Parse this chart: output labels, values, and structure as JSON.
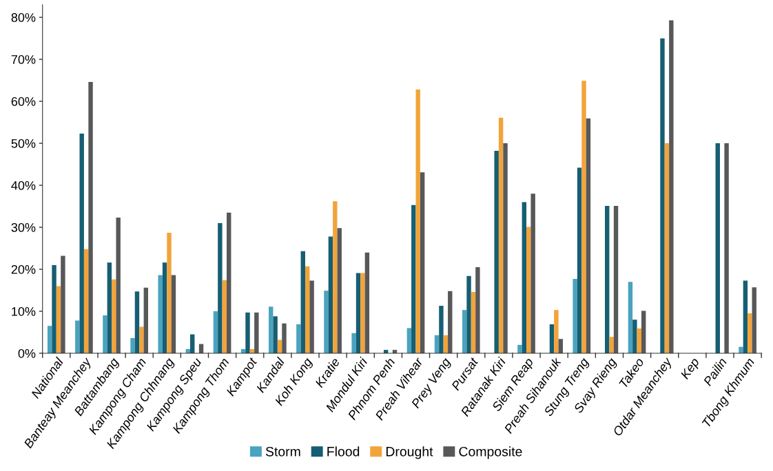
{
  "chart_data": {
    "type": "bar",
    "categories": [
      "National",
      "Banteay Meanchey",
      "Battambang",
      "Kampong Cham",
      "Kampong Chhnang",
      "Kampong Speu",
      "Kampong Thom",
      "Kampot",
      "Kandal",
      "Koh Kong",
      "Kratie",
      "Mondul Kiri",
      "Phnom Penh",
      "Preah Vihear",
      "Prey Veng",
      "Pursat",
      "Ratanak Kiri",
      "Siem Reap",
      "Preah Sihanouk",
      "Stung Treng",
      "Svay Rieng",
      "Takeo",
      "Otdar Meanchey",
      "Kep",
      "Pailin",
      "Tbong Khmum"
    ],
    "series": [
      {
        "name": "Storm",
        "color": "#4aa3bf",
        "values": [
          6.5,
          7.8,
          9,
          3.6,
          18.6,
          1,
          10,
          1,
          11.1,
          6.9,
          14.9,
          4.8,
          0,
          6,
          4.3,
          10.3,
          0,
          2,
          0,
          17.7,
          0,
          17,
          0,
          0,
          0,
          1.5
        ]
      },
      {
        "name": "Flood",
        "color": "#165e73",
        "values": [
          21,
          52.3,
          21.6,
          14.7,
          21.6,
          4.5,
          31,
          9.7,
          8.8,
          24.3,
          27.8,
          19.1,
          0.8,
          35.3,
          11.3,
          18.4,
          48.2,
          36,
          6.9,
          44.2,
          35.1,
          8,
          75,
          0,
          50,
          17.3
        ]
      },
      {
        "name": "Drought",
        "color": "#f2a43a",
        "values": [
          16,
          24.8,
          17.6,
          6.3,
          28.7,
          0,
          17.4,
          1,
          3.2,
          20.7,
          36.2,
          19.1,
          0,
          62.8,
          4.3,
          14.6,
          56.1,
          30.1,
          10.3,
          64.9,
          3.9,
          5.9,
          50,
          0,
          0,
          9.5
        ]
      },
      {
        "name": "Composite",
        "color": "#58585a",
        "values": [
          23.2,
          64.6,
          32.3,
          15.6,
          18.6,
          2.2,
          33.5,
          9.7,
          7.1,
          17.3,
          29.8,
          24,
          0.8,
          43.1,
          14.8,
          20.5,
          50,
          38,
          3.4,
          55.9,
          35.1,
          10.1,
          79.3,
          0,
          50,
          15.7
        ]
      }
    ],
    "ylim": [
      0,
      83
    ],
    "yticks": [
      {
        "value": 0,
        "label": "0%"
      },
      {
        "value": 10,
        "label": "10%"
      },
      {
        "value": 20,
        "label": "20%"
      },
      {
        "value": 30,
        "label": "30%"
      },
      {
        "value": 40,
        "label": "40%"
      },
      {
        "value": 50,
        "label": "50%"
      },
      {
        "value": 60,
        "label": "60%"
      },
      {
        "value": 70,
        "label": "70%"
      },
      {
        "value": 80,
        "label": "80%"
      }
    ],
    "legend": "bottom"
  }
}
